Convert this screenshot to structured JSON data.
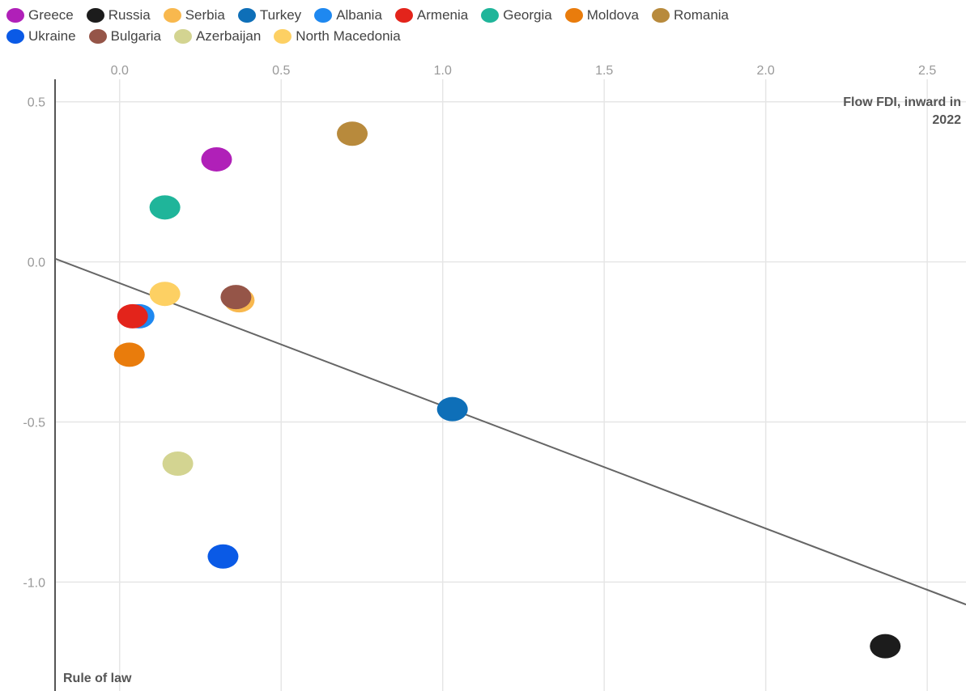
{
  "chart_data": {
    "type": "scatter",
    "x_axis_title": "Flow FDI, inward in 2022",
    "y_axis_title": "Rule of law",
    "x_ticks": [
      "0.0",
      "0.5",
      "1.0",
      "1.5",
      "2.0",
      "2.5"
    ],
    "y_ticks": [
      "0.5",
      "0.0",
      "-0.5",
      "-1.0"
    ],
    "xlim": [
      -0.2,
      2.62
    ],
    "ylim": [
      -1.34,
      0.57
    ],
    "grid": true,
    "legend_position": "top",
    "trendline": {
      "x": [
        -0.2,
        2.62
      ],
      "y": [
        0.01,
        -1.07
      ]
    },
    "series": [
      {
        "name": "Greece",
        "color": "#b020b8",
        "points": [
          [
            0.3,
            0.32
          ]
        ]
      },
      {
        "name": "Russia",
        "color": "#1c1c1c",
        "points": [
          [
            2.37,
            -1.2
          ]
        ]
      },
      {
        "name": "Serbia",
        "color": "#f8b84e",
        "points": [
          [
            0.37,
            -0.12
          ]
        ]
      },
      {
        "name": "Turkey",
        "color": "#0e6fb8",
        "points": [
          [
            1.03,
            -0.46
          ]
        ]
      },
      {
        "name": "Albania",
        "color": "#1e88f0",
        "points": [
          [
            0.06,
            -0.17
          ]
        ]
      },
      {
        "name": "Armenia",
        "color": "#e3241b",
        "points": [
          [
            0.04,
            -0.17
          ]
        ]
      },
      {
        "name": "Georgia",
        "color": "#1fb59a",
        "points": [
          [
            0.14,
            0.17
          ]
        ]
      },
      {
        "name": "Moldova",
        "color": "#e97c0c",
        "points": [
          [
            0.03,
            -0.29
          ]
        ]
      },
      {
        "name": "Romania",
        "color": "#b88a3c",
        "points": [
          [
            0.72,
            0.4
          ]
        ]
      },
      {
        "name": "Ukraine",
        "color": "#0a5ae6",
        "points": [
          [
            0.32,
            -0.92
          ]
        ]
      },
      {
        "name": "Bulgaria",
        "color": "#955548",
        "points": [
          [
            0.36,
            -0.11
          ]
        ]
      },
      {
        "name": "Azerbaijan",
        "color": "#d3d491",
        "points": [
          [
            0.18,
            -0.63
          ]
        ]
      },
      {
        "name": "North Macedonia",
        "color": "#fdd063",
        "points": [
          [
            0.14,
            -0.1
          ]
        ]
      }
    ]
  }
}
